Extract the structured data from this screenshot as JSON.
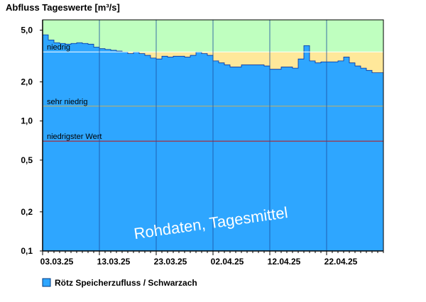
{
  "chart_data": {
    "type": "area",
    "title": "Abfluss Tageswerte [m³/s]",
    "yscale": "log",
    "ylim": [
      0.1,
      6.0
    ],
    "y_ticks": [
      {
        "value": 5.0,
        "label": "5,0"
      },
      {
        "value": 2.0,
        "label": "2,0"
      },
      {
        "value": 1.0,
        "label": "1,0"
      },
      {
        "value": 0.5,
        "label": "0,5"
      },
      {
        "value": 0.2,
        "label": "0,2"
      },
      {
        "value": 0.1,
        "label": "0,1"
      }
    ],
    "x_ticks": [
      {
        "day": 0,
        "label": "03.03.25"
      },
      {
        "day": 10,
        "label": "13.03.25"
      },
      {
        "day": 20,
        "label": "23.03.25"
      },
      {
        "day": 30,
        "label": "02.04.25"
      },
      {
        "day": 40,
        "label": "12.04.25"
      },
      {
        "day": 50,
        "label": "22.04.25"
      }
    ],
    "x_days_total": 60,
    "series": [
      {
        "name": "Rötz Speicherzufluss / Schwarzach",
        "color": "#2ea6ff",
        "values": [
          4.6,
          4.2,
          4.0,
          3.95,
          3.9,
          3.95,
          4.0,
          3.95,
          3.9,
          3.7,
          3.6,
          3.55,
          3.5,
          3.45,
          3.4,
          3.3,
          3.4,
          3.3,
          3.2,
          3.05,
          3.0,
          3.15,
          3.1,
          3.15,
          3.15,
          3.1,
          3.2,
          3.4,
          3.3,
          3.2,
          2.9,
          2.8,
          2.7,
          2.6,
          2.6,
          2.7,
          2.7,
          2.7,
          2.7,
          2.65,
          2.5,
          2.5,
          2.6,
          2.6,
          2.55,
          3.0,
          3.8,
          2.9,
          2.8,
          2.85,
          2.85,
          2.85,
          2.9,
          3.1,
          2.8,
          2.65,
          2.55,
          2.45,
          2.35,
          2.35
        ]
      }
    ],
    "zones": [
      {
        "label": "",
        "from": 3.4,
        "to": 6.0,
        "color": "#bfffbf"
      },
      {
        "label": "niedrig",
        "from": 1.3,
        "to": 3.4,
        "color": "#ffe89a",
        "line_color": "#ffffff"
      },
      {
        "label": "sehr niedrig",
        "from": 0.7,
        "to": 1.3,
        "color": "#ffe89a",
        "line_color": "#c8b060"
      },
      {
        "label": "niedrigster Wert",
        "from": 0.1,
        "to": 0.7,
        "color": "#e37070",
        "line_color": "#c01010"
      }
    ],
    "watermark": "Rohdaten, Tagesmittel"
  }
}
